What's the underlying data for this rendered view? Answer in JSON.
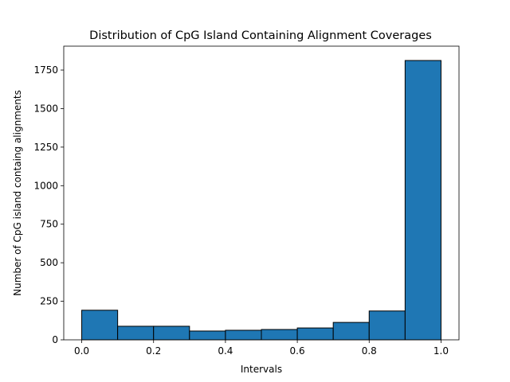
{
  "chart_data": {
    "type": "bar",
    "title": "Distribution of CpG Island Containing Alignment Coverages",
    "xlabel": "Intervals",
    "ylabel": "Number of CpG island containg alignments",
    "xlim": [
      -0.05,
      1.05
    ],
    "ylim": [
      0,
      1905
    ],
    "bins": [
      {
        "x0": 0.0,
        "x1": 0.1,
        "value": 192
      },
      {
        "x0": 0.1,
        "x1": 0.2,
        "value": 88
      },
      {
        "x0": 0.2,
        "x1": 0.3,
        "value": 88
      },
      {
        "x0": 0.3,
        "x1": 0.4,
        "value": 57
      },
      {
        "x0": 0.4,
        "x1": 0.5,
        "value": 62
      },
      {
        "x0": 0.5,
        "x1": 0.6,
        "value": 67
      },
      {
        "x0": 0.6,
        "x1": 0.7,
        "value": 77
      },
      {
        "x0": 0.7,
        "x1": 0.8,
        "value": 113
      },
      {
        "x0": 0.8,
        "x1": 0.9,
        "value": 187
      },
      {
        "x0": 0.9,
        "x1": 1.0,
        "value": 1812
      }
    ],
    "xticks": [
      {
        "value": 0.0,
        "label": "0.0"
      },
      {
        "value": 0.2,
        "label": "0.2"
      },
      {
        "value": 0.4,
        "label": "0.4"
      },
      {
        "value": 0.6,
        "label": "0.6"
      },
      {
        "value": 0.8,
        "label": "0.8"
      },
      {
        "value": 1.0,
        "label": "1.0"
      }
    ],
    "yticks": [
      {
        "value": 0,
        "label": "0"
      },
      {
        "value": 250,
        "label": "250"
      },
      {
        "value": 500,
        "label": "500"
      },
      {
        "value": 750,
        "label": "750"
      },
      {
        "value": 1000,
        "label": "1000"
      },
      {
        "value": 1250,
        "label": "1250"
      },
      {
        "value": 1500,
        "label": "1500"
      },
      {
        "value": 1750,
        "label": "1750"
      }
    ],
    "bar_color": "#1f77b4",
    "edge_color": "#000000",
    "grid": false,
    "legend": "none"
  }
}
